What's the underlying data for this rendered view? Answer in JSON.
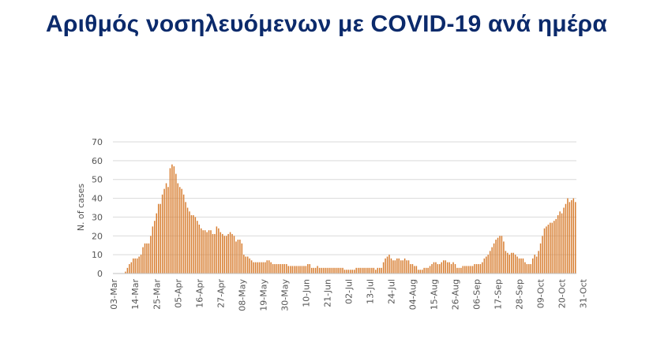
{
  "title": "Αριθμός νοσηλευόμενων με COVID-19 ανά ημέρα",
  "colors": {
    "bar": "#D77C2E",
    "title": "#0B2A6B",
    "grid": "#D9D9D9",
    "text": "#555555"
  },
  "chart_data": {
    "type": "bar",
    "title": "Αριθμός νοσηλευόμενων με COVID-19 ανά ημέρα",
    "xlabel": "",
    "ylabel": "N. of cases",
    "ylim": [
      0,
      70
    ],
    "yticks": [
      0,
      10,
      20,
      30,
      40,
      50,
      60,
      70
    ],
    "grid": true,
    "start_date": "03-Mar",
    "tick_labels": [
      "03-Mar",
      "14-Mar",
      "25-Mar",
      "05-Apr",
      "16-Apr",
      "27-Apr",
      "08-May",
      "19-May",
      "30-May",
      "10-Jun",
      "21-Jun",
      "02-Jul",
      "13-Jul",
      "24-Jul",
      "04-Aug",
      "15-Aug",
      "26-Aug",
      "06-Sep",
      "17-Sep",
      "28-Sep",
      "09-Oct",
      "20-Oct",
      "31-Oct"
    ],
    "values": [
      0,
      0,
      0,
      0,
      0,
      0,
      1,
      3,
      5,
      6,
      8,
      8,
      8,
      9,
      10,
      14,
      16,
      16,
      16,
      20,
      25,
      28,
      32,
      37,
      37,
      42,
      45,
      48,
      46,
      56,
      58,
      57,
      53,
      48,
      46,
      45,
      42,
      38,
      35,
      33,
      31,
      31,
      30,
      28,
      26,
      24,
      23,
      23,
      22,
      23,
      23,
      21,
      21,
      25,
      24,
      22,
      21,
      20,
      20,
      21,
      22,
      21,
      20,
      17,
      18,
      18,
      16,
      10,
      9,
      9,
      8,
      7,
      6,
      6,
      6,
      6,
      6,
      6,
      6,
      7,
      7,
      6,
      5,
      5,
      5,
      5,
      5,
      5,
      5,
      5,
      4,
      4,
      4,
      4,
      4,
      4,
      4,
      4,
      4,
      4,
      5,
      5,
      3,
      3,
      3,
      4,
      3,
      3,
      3,
      3,
      3,
      3,
      3,
      3,
      3,
      3,
      3,
      3,
      3,
      2,
      2,
      2,
      2,
      2,
      2,
      3,
      3,
      3,
      3,
      3,
      3,
      3,
      3,
      3,
      3,
      2,
      3,
      3,
      3,
      6,
      8,
      9,
      10,
      8,
      7,
      7,
      8,
      8,
      7,
      7,
      8,
      7,
      7,
      5,
      5,
      4,
      4,
      2,
      2,
      2,
      3,
      3,
      3,
      4,
      5,
      6,
      6,
      5,
      5,
      6,
      7,
      7,
      6,
      6,
      5,
      6,
      5,
      3,
      3,
      3,
      4,
      4,
      4,
      4,
      4,
      4,
      5,
      5,
      5,
      5,
      6,
      8,
      9,
      10,
      12,
      14,
      16,
      18,
      19,
      20,
      20,
      17,
      12,
      11,
      10,
      11,
      11,
      10,
      9,
      8,
      8,
      8,
      6,
      5,
      5,
      5,
      8,
      10,
      9,
      12,
      16,
      20,
      24,
      25,
      26,
      27,
      27,
      28,
      29,
      31,
      33,
      32,
      35,
      37,
      40,
      38,
      39,
      40,
      38
    ]
  }
}
